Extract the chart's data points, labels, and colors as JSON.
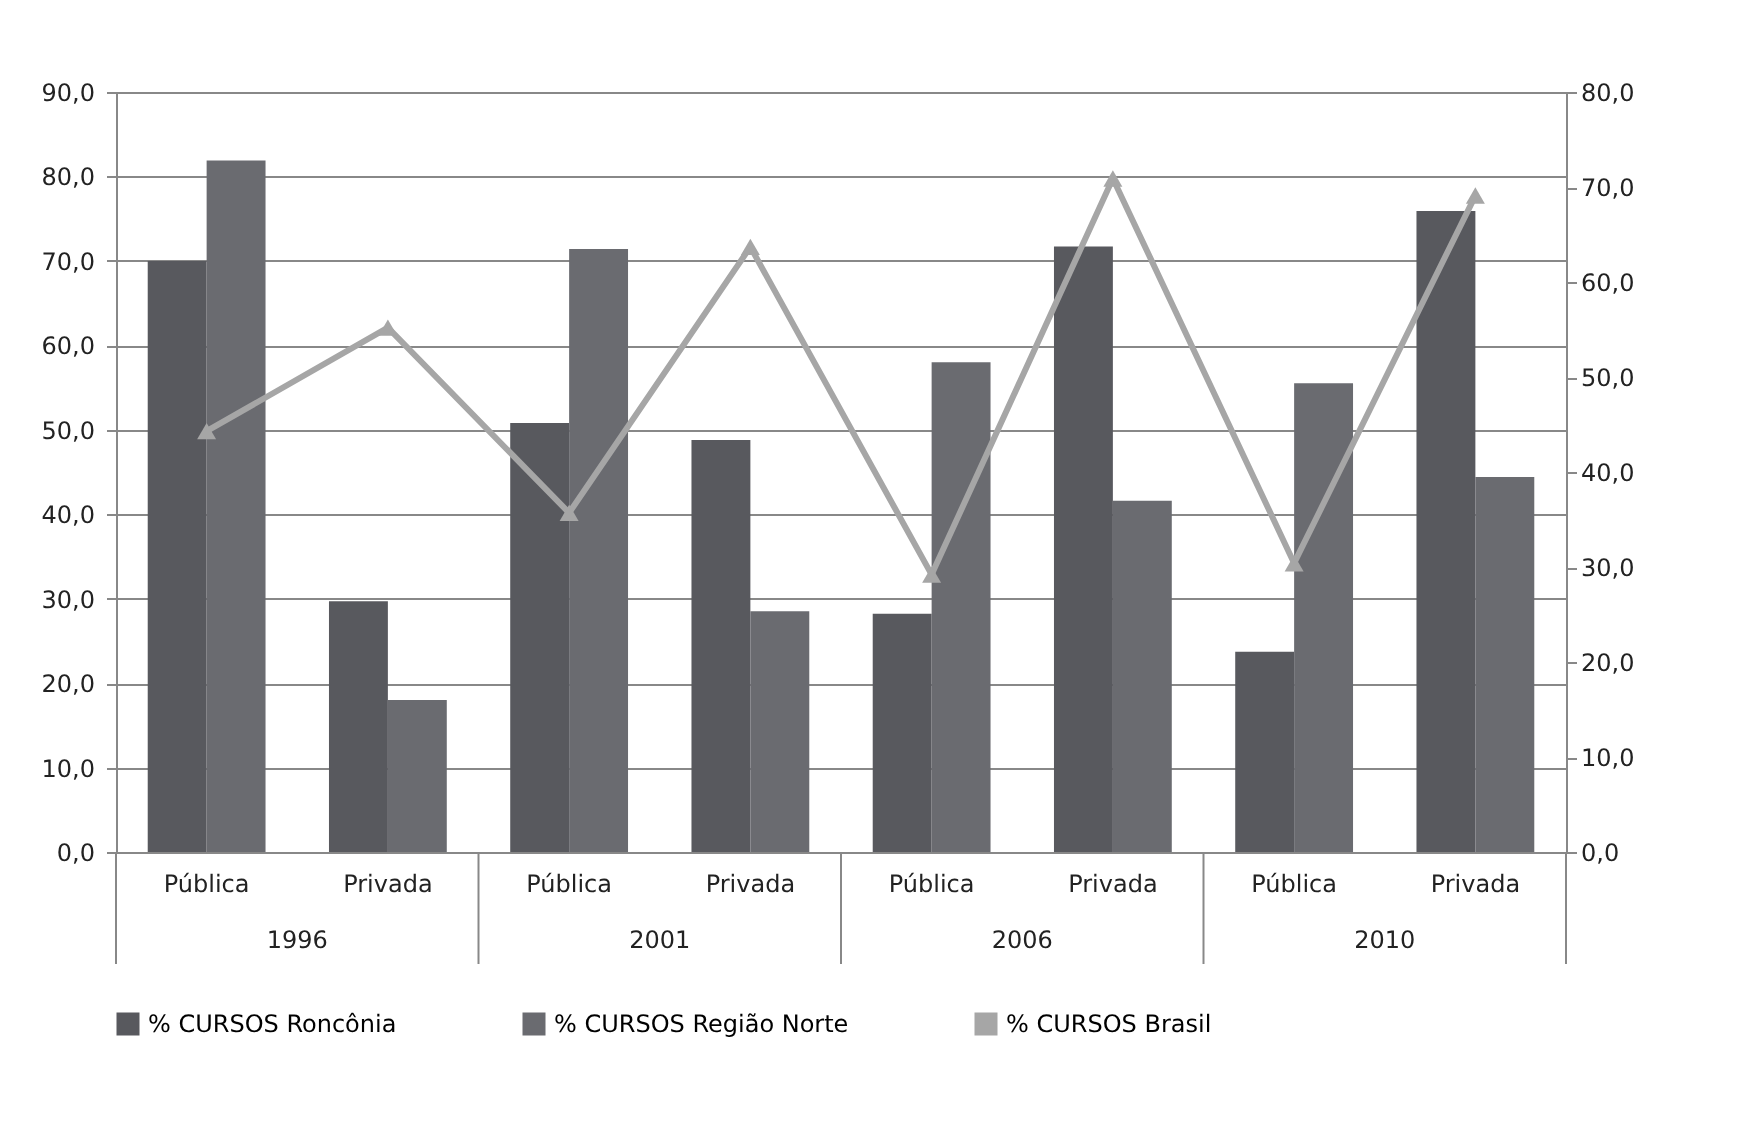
{
  "chart_data": {
    "type": "bar",
    "categories": [
      "Pública",
      "Privada",
      "Pública",
      "Privada",
      "Pública",
      "Privada",
      "Pública",
      "Privada"
    ],
    "series": [
      {
        "name": "% CURSOS Roncônia",
        "color": "#58595e",
        "values": [
          70.0,
          29.7,
          50.8,
          48.8,
          28.2,
          71.7,
          23.7,
          75.9
        ]
      },
      {
        "name": "% CURSOS Região Norte",
        "color": "#6a6b70",
        "values": [
          81.9,
          18.0,
          71.4,
          28.5,
          58.0,
          41.6,
          55.5,
          44.4
        ]
      },
      {
        "name": "% CURSOS Brasil",
        "color": "#a6a6a6",
        "type": "line",
        "axis": "y2",
        "marker": "triangle",
        "line_style": "solid",
        "values": [
          44.3,
          55.2,
          35.7,
          63.7,
          29.2,
          70.9,
          30.4,
          69.1
        ]
      }
    ],
    "annotations": [
      "1996",
      "2001",
      "2006",
      "2010"
    ],
    "ylim": [
      0,
      90
    ],
    "yticks": [
      {
        "value": 0,
        "label": "0,0"
      },
      {
        "value": 10,
        "label": "10,0"
      },
      {
        "value": 20,
        "label": "20,0"
      },
      {
        "value": 30,
        "label": "30,0"
      },
      {
        "value": 40,
        "label": "40,0"
      },
      {
        "value": 50,
        "label": "50,0"
      },
      {
        "value": 60,
        "label": "60,0"
      },
      {
        "value": 70,
        "label": "70,0"
      },
      {
        "value": 80,
        "label": "80,0"
      },
      {
        "value": 90,
        "label": "90,0"
      }
    ],
    "y2lim": [
      0,
      80
    ],
    "y2ticks": [
      {
        "value": 0,
        "label": "0,0"
      },
      {
        "value": 10,
        "label": "10,0"
      },
      {
        "value": 20,
        "label": "20,0"
      },
      {
        "value": 30,
        "label": "30,0"
      },
      {
        "value": 40,
        "label": "40,0"
      },
      {
        "value": 50,
        "label": "50,0"
      },
      {
        "value": 60,
        "label": "60,0"
      },
      {
        "value": 70,
        "label": "70,0"
      },
      {
        "value": 80,
        "label": "80,0"
      }
    ],
    "grid": "y",
    "legend": "bottom"
  }
}
